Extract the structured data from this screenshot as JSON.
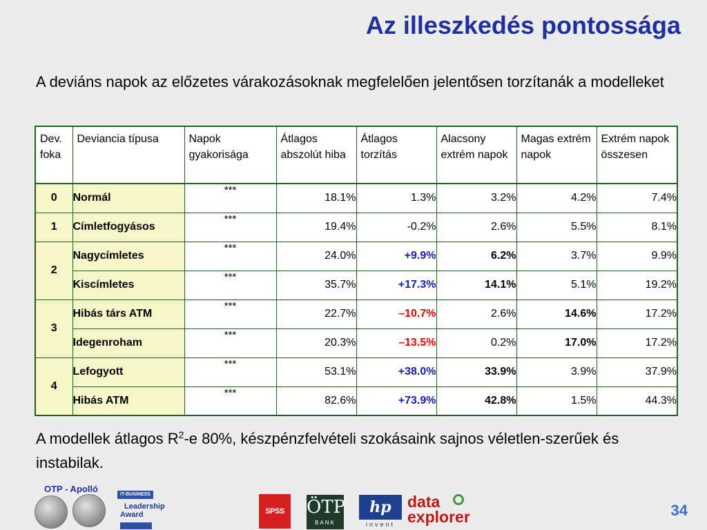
{
  "slide": {
    "title": "Az illeszkedés pontossága",
    "intro": "A deviáns napok az előzetes várakozásoknak megfelelően jelentősen torzítanák a modelleket",
    "outro_before_sup": "A modellek átlagos R",
    "outro_sup": "2",
    "outro_after_sup": "-e 80%, készpénzfelvételi szokásaink sajnos véletlen-szerűek és instabilak.",
    "page_number": "34"
  },
  "table": {
    "headers": [
      "Dev. foka",
      "Deviancia típusa",
      "Napok gyakorisága",
      "Átlagos abszolút hiba",
      "Átlagos torzítás",
      "Alacsony extrém napok",
      "Magas extrém napok",
      "Extrém napok összesen"
    ],
    "rows": [
      {
        "foka": "0",
        "type": "Normál",
        "freq": "***",
        "mae": "18.1%",
        "bias": "1.3%",
        "low": "3.2%",
        "high": "4.2%",
        "total": "7.4%"
      },
      {
        "foka": "1",
        "type": "Címletfogyásos",
        "freq": "***",
        "mae": "19.4%",
        "bias": "-0.2%",
        "low": "2.6%",
        "high": "5.5%",
        "total": "8.1%"
      },
      {
        "foka": "2",
        "type": "Nagycímletes",
        "freq": "***",
        "mae": "24.0%",
        "bias": "+9.9%",
        "low": "6.2%",
        "high": "3.7%",
        "total": "9.9%"
      },
      {
        "foka": "",
        "type": "Kiscímletes",
        "freq": "***",
        "mae": "35.7%",
        "bias": "+17.3%",
        "low": "14.1%",
        "high": "5.1%",
        "total": "19.2%"
      },
      {
        "foka": "3",
        "type": "Hibás társ ATM",
        "freq": "***",
        "mae": "22.7%",
        "bias": "–10.7%",
        "low": "2.6%",
        "high": "14.6%",
        "total": "17.2%"
      },
      {
        "foka": "",
        "type": "Idegenroham",
        "freq": "***",
        "mae": "20.3%",
        "bias": "–13.5%",
        "low": "0.2%",
        "high": "17.0%",
        "total": "17.2%"
      },
      {
        "foka": "4",
        "type": "Lefogyott",
        "freq": "***",
        "mae": "53.1%",
        "bias": "+38.0%",
        "low": "33.9%",
        "high": "3.9%",
        "total": "37.9%"
      },
      {
        "foka": "",
        "type": "Hibás ATM",
        "freq": "***",
        "mae": "82.6%",
        "bias": "+73.9%",
        "low": "42.8%",
        "high": "1.5%",
        "total": "44.3%"
      }
    ]
  },
  "footer": {
    "otp_label": "OTP - Apolló",
    "award_band": "IT-BUSINESS",
    "award_line1": "Leadership",
    "award_line2": "Award",
    "spss": "SPSS",
    "otp_bank_mark": "ÖTP",
    "otp_bank_sub": "BANK",
    "hp_mark": "hp",
    "hp_sub": "invent",
    "data_explorer_line1": "data",
    "data_explorer_line2": "explorer"
  },
  "colors": {
    "title": "#1f2f9e",
    "positive_bias": "#1a1aa6",
    "negative_bias": "#e00000",
    "label_cells": "#f6f6c8",
    "border": "#1f5f1f",
    "page_number": "#3a6fcf"
  },
  "icons": [
    "coin-icon",
    "leadership-award-logo",
    "spss-logo",
    "otp-bank-logo",
    "hp-invent-logo",
    "data-explorer-logo"
  ]
}
